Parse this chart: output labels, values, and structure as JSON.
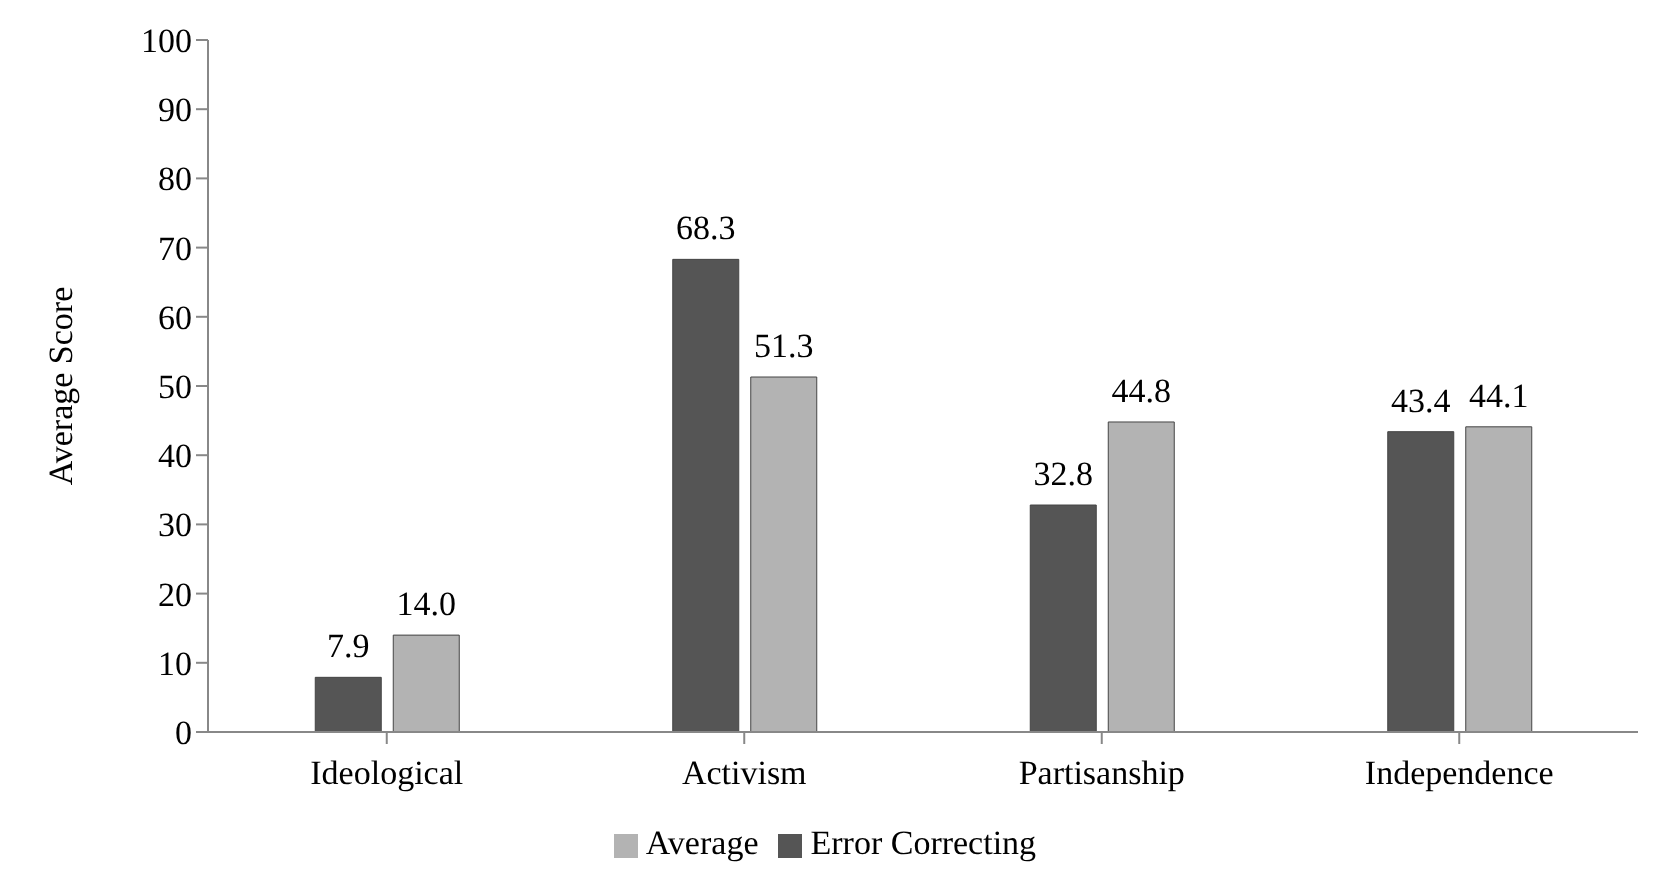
{
  "chart_data": {
    "type": "bar",
    "ylabel": "Average Score",
    "categories": [
      "Ideological",
      "Activism",
      "Partisanship",
      "Independence"
    ],
    "series": [
      {
        "name": "Error Correcting",
        "color": "#555555",
        "values": [
          7.9,
          68.3,
          32.8,
          43.4
        ],
        "value_labels": [
          "7.9",
          "68.3",
          "32.8",
          "43.4"
        ]
      },
      {
        "name": "Average",
        "color": "#b3b3b3",
        "values": [
          14.0,
          51.3,
          44.8,
          44.1
        ],
        "value_labels": [
          "14.0",
          "51.3",
          "44.8",
          "44.1"
        ]
      }
    ],
    "ylim": [
      0,
      100
    ],
    "yticks": [
      0,
      10,
      20,
      30,
      40,
      50,
      60,
      70,
      80,
      90,
      100
    ],
    "grid": false,
    "legend": "bottom"
  }
}
